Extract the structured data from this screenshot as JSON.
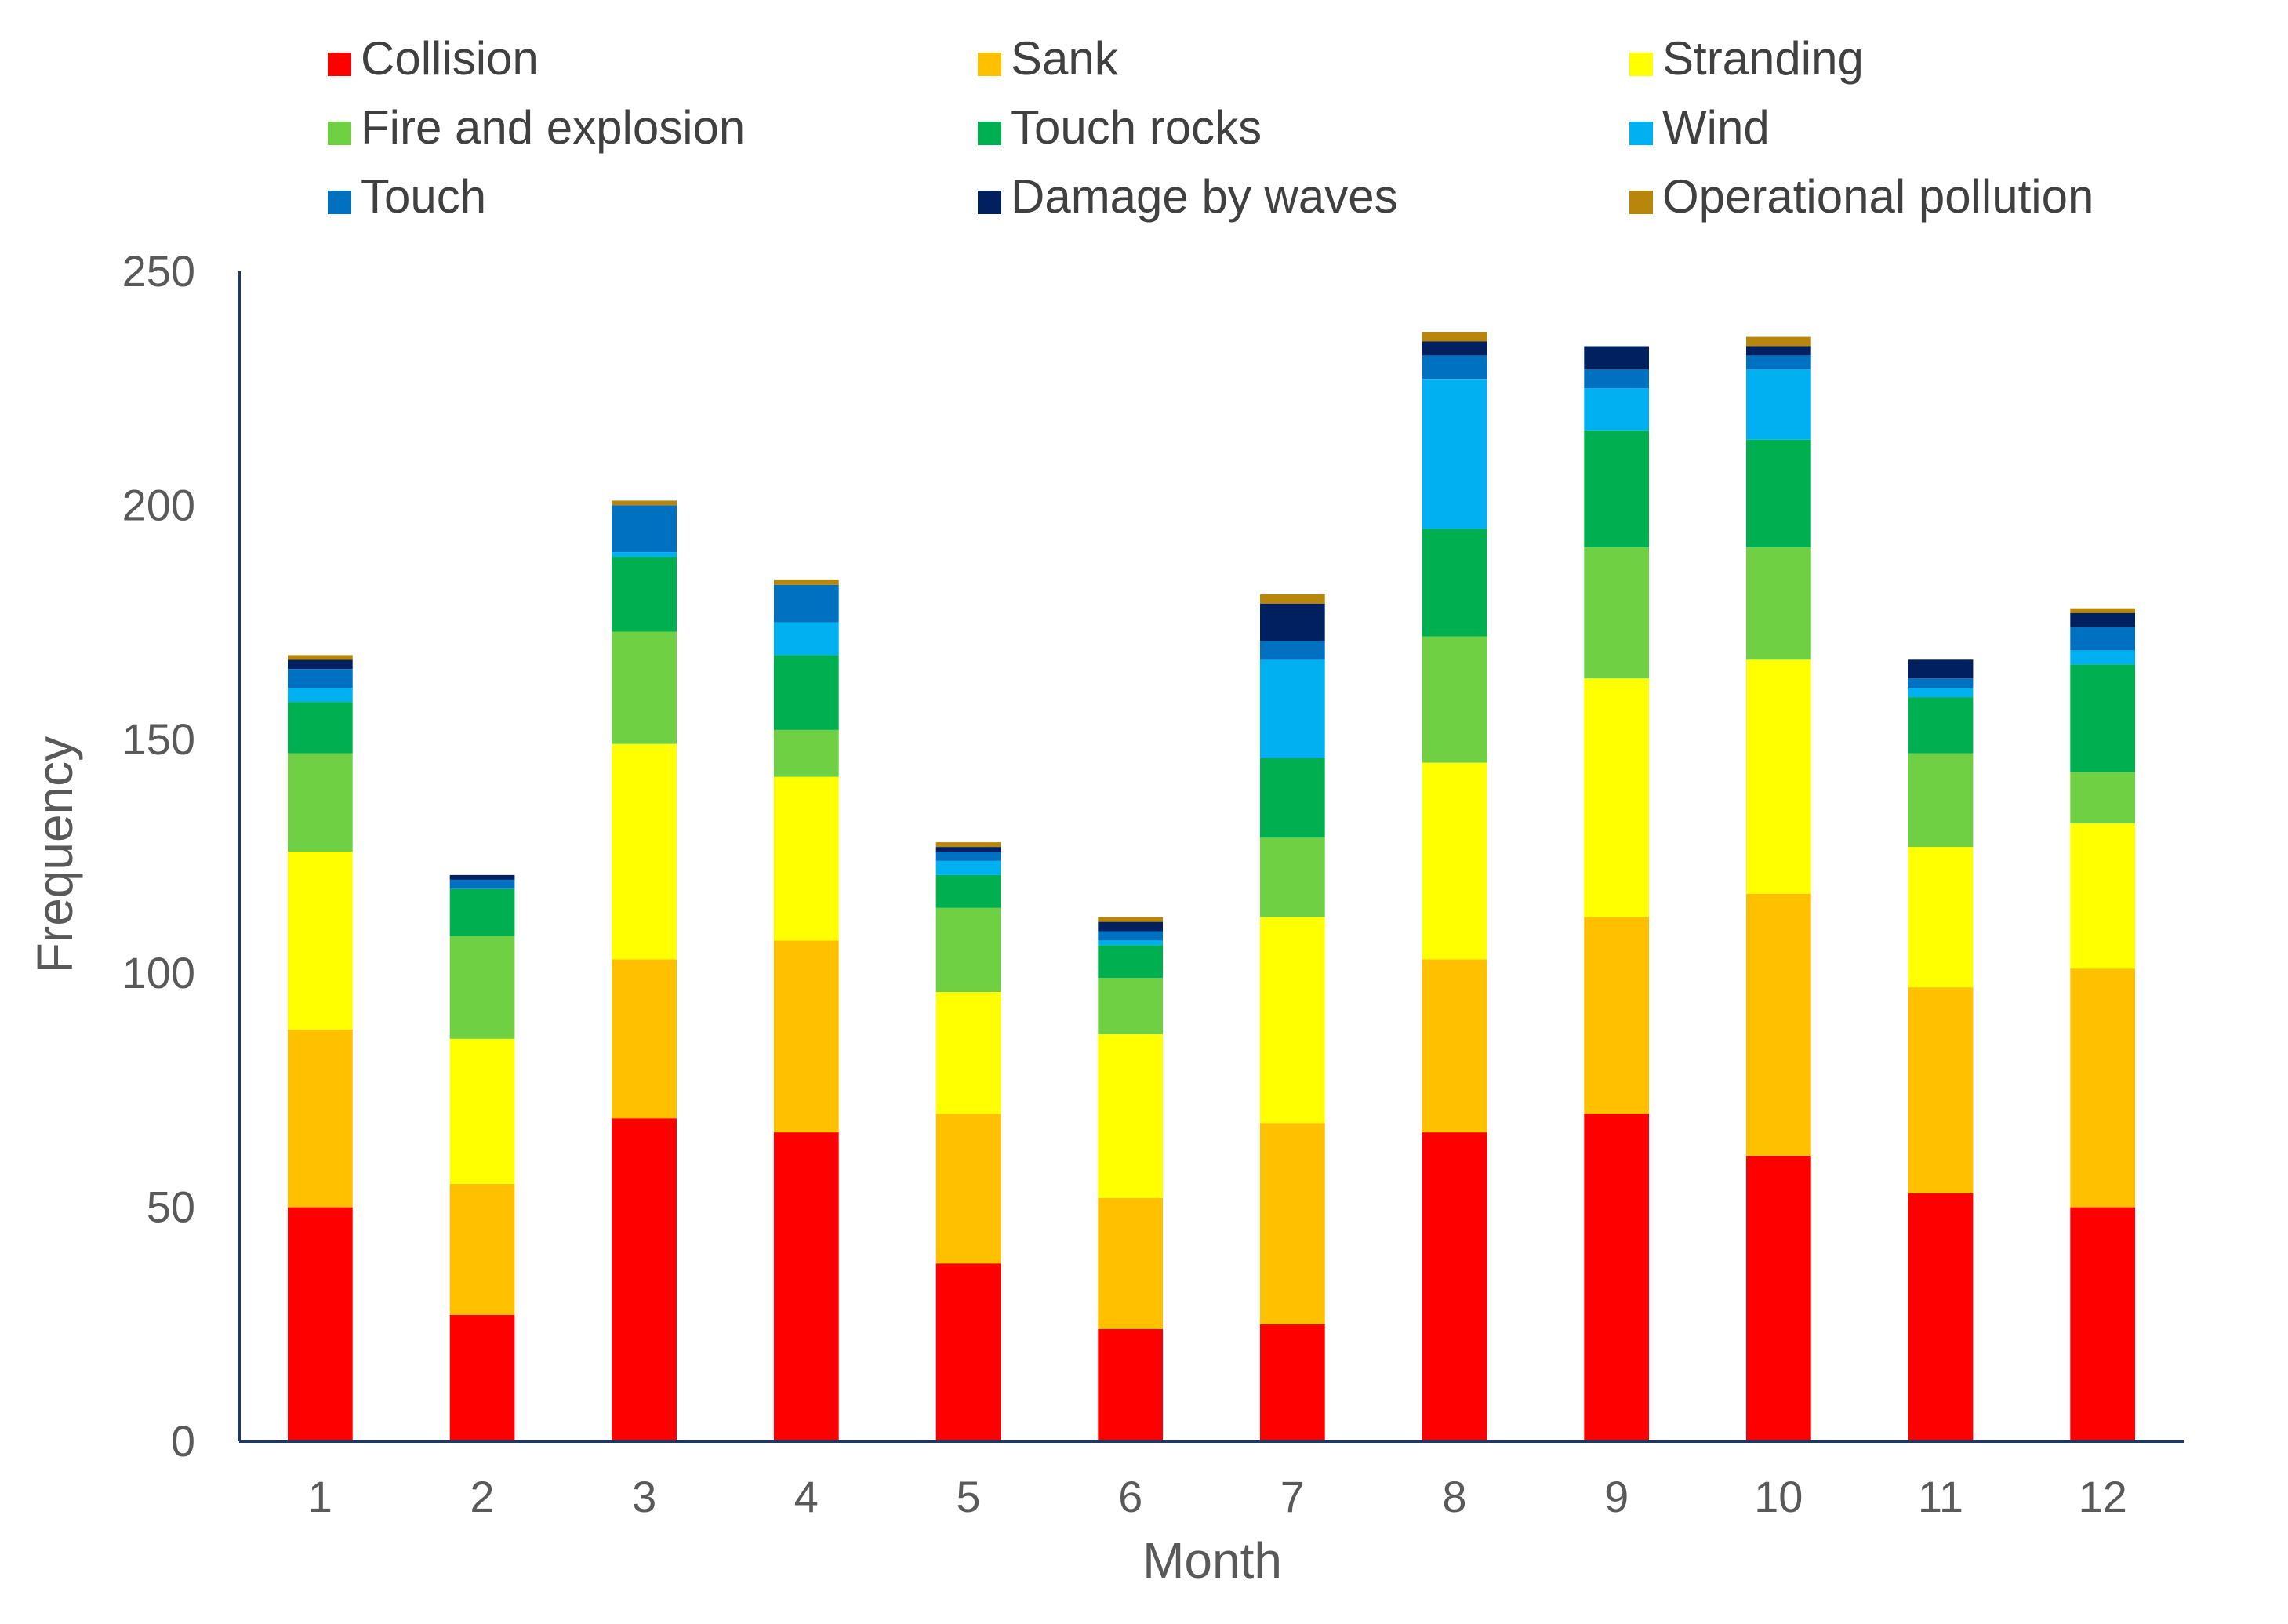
{
  "chart_data": {
    "type": "bar",
    "stacked": true,
    "title": "",
    "xlabel": "Month",
    "ylabel": "Frequency",
    "ylim": [
      0,
      250
    ],
    "yticks": [
      0,
      50,
      100,
      150,
      200,
      250
    ],
    "grid": false,
    "legend_position": "top",
    "categories": [
      "1",
      "2",
      "3",
      "4",
      "5",
      "6",
      "7",
      "8",
      "9",
      "10",
      "11",
      "12"
    ],
    "series": [
      {
        "name": "Collision",
        "color": "#FF0000",
        "values": [
          50,
          27,
          69,
          66,
          38,
          24,
          25,
          66,
          70,
          61,
          53,
          50
        ]
      },
      {
        "name": "Sank",
        "color": "#FFC000",
        "values": [
          38,
          28,
          34,
          41,
          32,
          28,
          43,
          37,
          42,
          56,
          44,
          51
        ]
      },
      {
        "name": "Stranding",
        "color": "#FFFF00",
        "values": [
          38,
          31,
          46,
          35,
          26,
          35,
          44,
          42,
          51,
          50,
          30,
          31
        ]
      },
      {
        "name": "Fire and explosion",
        "color": "#70D044",
        "values": [
          21,
          22,
          24,
          10,
          18,
          12,
          17,
          27,
          28,
          24,
          20,
          11
        ]
      },
      {
        "name": "Touch rocks",
        "color": "#00B050",
        "values": [
          11,
          10,
          16,
          16,
          7,
          7,
          17,
          23,
          25,
          23,
          12,
          23
        ]
      },
      {
        "name": "Wind",
        "color": "#00B0F0",
        "values": [
          3,
          0,
          1,
          7,
          3,
          1,
          21,
          32,
          9,
          15,
          2,
          3
        ]
      },
      {
        "name": "Touch",
        "color": "#0070C0",
        "values": [
          4,
          2,
          10,
          8,
          2,
          2,
          4,
          5,
          4,
          3,
          2,
          5
        ]
      },
      {
        "name": "Damage by waves",
        "color": "#002060",
        "values": [
          2,
          1,
          0,
          0,
          1,
          2,
          8,
          3,
          5,
          2,
          4,
          3
        ]
      },
      {
        "name": "Operational pollution",
        "color": "#B8860B",
        "values": [
          1,
          0,
          1,
          1,
          1,
          1,
          2,
          2,
          0,
          2,
          0,
          1
        ]
      }
    ]
  }
}
